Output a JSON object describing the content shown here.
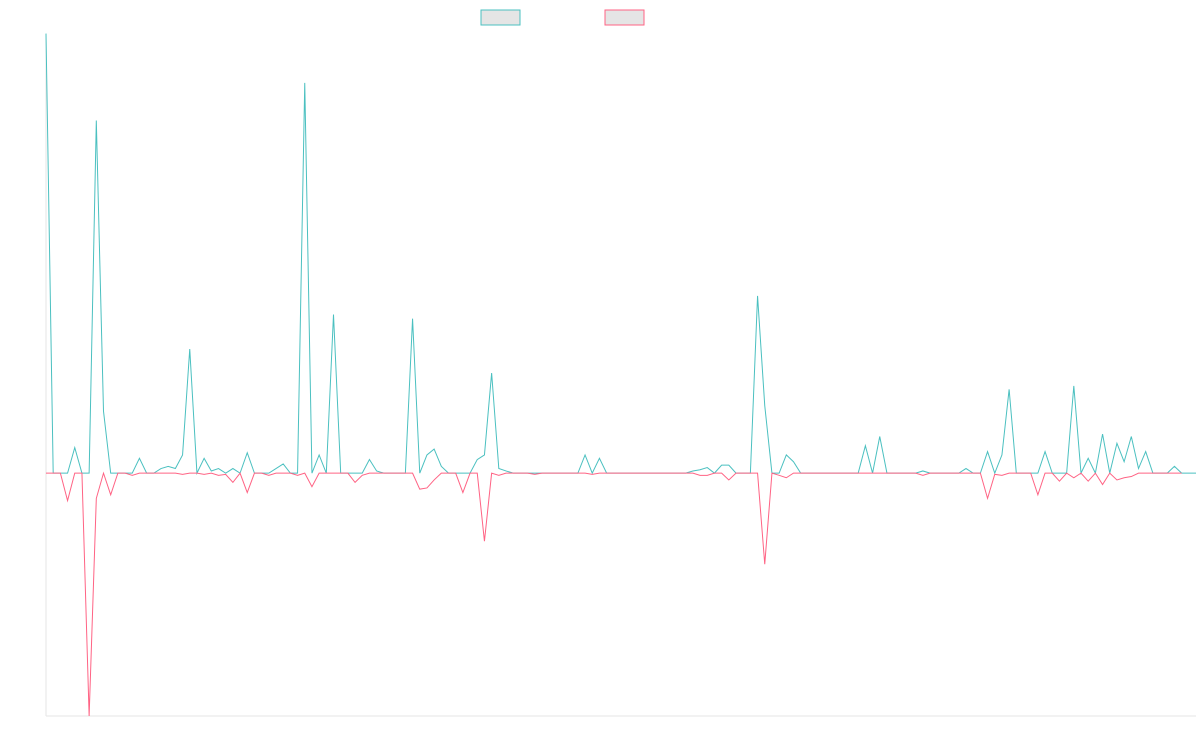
{
  "chart_data": {
    "type": "line",
    "title": "",
    "xlabel": "",
    "ylabel": "",
    "grid": false,
    "legend_position": "top-center",
    "ylim": [
      -1.0,
      1.8
    ],
    "series": [
      {
        "name": "",
        "color": "#4bc0c0",
        "values": [
          1.81,
          0,
          0,
          0,
          0.105,
          0,
          0,
          1.452,
          0.255,
          0,
          0,
          0,
          0,
          0.061,
          0,
          0,
          0.019,
          0.028,
          0.019,
          0.075,
          0.511,
          0,
          0.061,
          0.009,
          0.019,
          0,
          0.019,
          0,
          0.084,
          0,
          0,
          0,
          0.019,
          0.038,
          0,
          0,
          1.607,
          0,
          0.075,
          0,
          0.653,
          0,
          0,
          0,
          0,
          0.056,
          0.009,
          0,
          0,
          0,
          0,
          0.636,
          0,
          0.075,
          0.099,
          0.028,
          0,
          0,
          0,
          0,
          0.056,
          0.075,
          0.412,
          0.019,
          0.009,
          0,
          0,
          0,
          0,
          0,
          0,
          0,
          0,
          0,
          0,
          0.075,
          0,
          0.061,
          0,
          0,
          0,
          0,
          0,
          0,
          0,
          0,
          0,
          0,
          0,
          0,
          0.009,
          0.014,
          0.023,
          0,
          0.033,
          0.033,
          0,
          0,
          0,
          0.73,
          0.278,
          0,
          0,
          0.075,
          0.047,
          0,
          0,
          0,
          0,
          0,
          0,
          0,
          0,
          0,
          0.113,
          0,
          0.151,
          0,
          0,
          0,
          0,
          0,
          0.009,
          0,
          0,
          0,
          0,
          0,
          0.019,
          0,
          0,
          0.089,
          0,
          0.075,
          0.345,
          0,
          0,
          0,
          0,
          0.089,
          0,
          0,
          0,
          0.359,
          0,
          0.061,
          0,
          0.161,
          0,
          0.123,
          0.047,
          0.151,
          0.019,
          0.089,
          0,
          0,
          0,
          0.028,
          0,
          0,
          0
        ]
      },
      {
        "name": "",
        "color": "#ff6384",
        "values": [
          0,
          0,
          0,
          -0.113,
          0,
          0,
          -1.0,
          -0.104,
          0,
          -0.089,
          0,
          0,
          -0.009,
          0,
          0,
          0,
          0,
          0,
          0,
          -0.005,
          0,
          0,
          -0.005,
          0,
          -0.009,
          -0.005,
          -0.038,
          0,
          -0.08,
          0,
          0,
          -0.009,
          0,
          0,
          0,
          -0.009,
          0,
          -0.056,
          0,
          0,
          0,
          0,
          0,
          -0.038,
          -0.009,
          0,
          0,
          0,
          0,
          0,
          0,
          0,
          -0.066,
          -0.061,
          -0.028,
          0,
          0,
          0,
          -0.08,
          0,
          0,
          -0.28,
          0,
          -0.009,
          0,
          0,
          0,
          0,
          -0.005,
          0,
          0,
          0,
          0,
          0,
          0,
          0,
          -0.005,
          0,
          0,
          0,
          0,
          0,
          0,
          0,
          0,
          0,
          0,
          0,
          0,
          0,
          0,
          -0.009,
          -0.009,
          0,
          0,
          -0.028,
          0,
          0,
          0,
          0,
          -0.375,
          0,
          -0.009,
          -0.019,
          0,
          0,
          0,
          0,
          0,
          0,
          0,
          0,
          0,
          0,
          0,
          0,
          0,
          0,
          0,
          0,
          0,
          0,
          -0.009,
          0,
          0,
          0,
          0,
          0,
          0,
          0,
          0,
          -0.104,
          -0.005,
          -0.009,
          0,
          0,
          0,
          0,
          -0.089,
          0,
          0,
          -0.033,
          0,
          -0.019,
          0,
          -0.033,
          0,
          -0.047,
          0,
          -0.028,
          -0.019,
          -0.014,
          0,
          0,
          0,
          0,
          0,
          0,
          0
        ]
      }
    ]
  }
}
